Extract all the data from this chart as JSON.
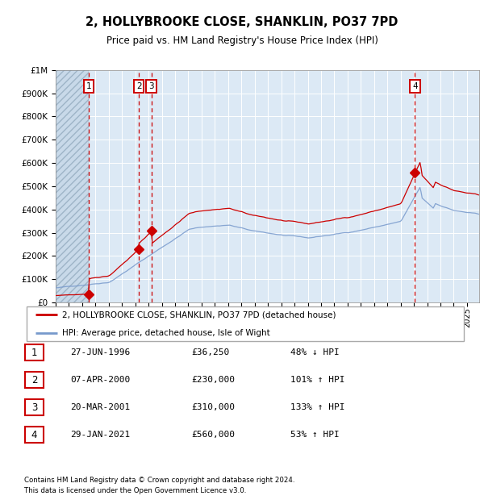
{
  "title": "2, HOLLYBROOKE CLOSE, SHANKLIN, PO37 7PD",
  "subtitle": "Price paid vs. HM Land Registry's House Price Index (HPI)",
  "sales": [
    {
      "label": "1",
      "date_f": 1996.493,
      "price": 36250,
      "hpi_pct": "48% ↓ HPI",
      "date_str": "27-JUN-1996",
      "price_str": "£36,250"
    },
    {
      "label": "2",
      "date_f": 2000.268,
      "price": 230000,
      "hpi_pct": "101% ↑ HPI",
      "date_str": "07-APR-2000",
      "price_str": "£230,000"
    },
    {
      "label": "3",
      "date_f": 2001.218,
      "price": 310000,
      "hpi_pct": "133% ↑ HPI",
      "date_str": "20-MAR-2001",
      "price_str": "£310,000"
    },
    {
      "label": "4",
      "date_f": 2021.08,
      "price": 560000,
      "hpi_pct": "53% ↑ HPI",
      "date_str": "29-JAN-2021",
      "price_str": "£560,000"
    }
  ],
  "legend_property": "2, HOLLYBROOKE CLOSE, SHANKLIN, PO37 7PD (detached house)",
  "legend_hpi": "HPI: Average price, detached house, Isle of Wight",
  "footer1": "Contains HM Land Registry data © Crown copyright and database right 2024.",
  "footer2": "This data is licensed under the Open Government Licence v3.0.",
  "property_color": "#cc0000",
  "hpi_color": "#7799cc",
  "background_color": "#dce9f5",
  "grid_color": "#ffffff",
  "dashed_color": "#cc0000",
  "ylim": [
    0,
    1000000
  ],
  "xlim_start": 1994.0,
  "xlim_end": 2025.92
}
